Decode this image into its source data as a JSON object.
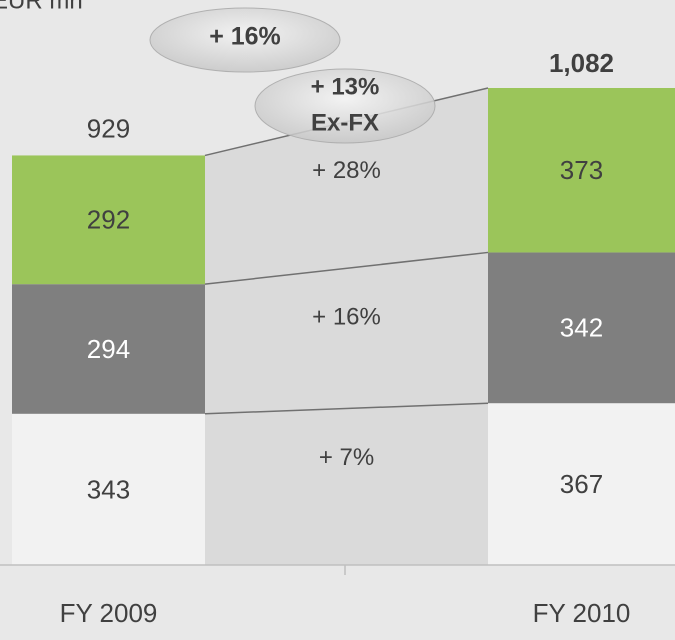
{
  "chart_data": {
    "type": "stacked_bar",
    "ylabel": "EUR mn",
    "categories": [
      "FY 2009",
      "FY 2010"
    ],
    "series": [
      {
        "color": "#f2f2f2",
        "text_color": "#404040",
        "values": [
          343,
          367
        ],
        "growth": "+ 7%"
      },
      {
        "color": "#7f7f7f",
        "text_color": "#ffffff",
        "values": [
          294,
          342
        ],
        "growth": "+ 16%"
      },
      {
        "color": "#9bc55a",
        "text_color": "#404040",
        "values": [
          292,
          373
        ],
        "growth": "+ 28%"
      }
    ],
    "totals": {
      "values": [
        929,
        1082
      ],
      "value_labels": [
        "929",
        "1,082"
      ]
    },
    "annotations": {
      "total_growth": "+ 16%",
      "ex_fx_growth": "+ 13%",
      "ex_fx_label": "Ex-FX"
    }
  }
}
